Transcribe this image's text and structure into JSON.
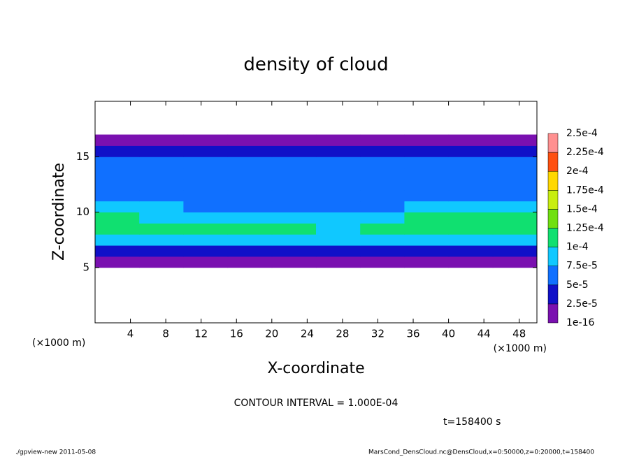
{
  "chart_data": {
    "type": "heatmap",
    "title": "density of cloud",
    "x_label": "X-coordinate",
    "y_label": "Z-coordinate",
    "x_unit": "(×1000 m)",
    "y_unit": "(×1000 m)",
    "contour_note": "CONTOUR INTERVAL = 1.000E-04",
    "time_note": "t=158400 s",
    "footer_left": "./gpview-new  2011-05-08",
    "footer_right": "MarsCond_DensCloud.nc@DensCloud,x=0:50000,z=0:20000,t=158400",
    "xlim": [
      0,
      50
    ],
    "ylim": [
      0,
      20
    ],
    "xticks": [
      4,
      8,
      12,
      16,
      20,
      24,
      28,
      32,
      36,
      40,
      44,
      48
    ],
    "yticks": [
      5,
      10,
      15
    ],
    "xbins": [
      0,
      5,
      10,
      15,
      20,
      25,
      30,
      35,
      40,
      45,
      50
    ],
    "zbins": [
      5,
      6,
      7,
      8,
      9,
      10,
      11,
      12,
      13,
      14,
      15,
      16,
      17
    ],
    "values": [
      [
        1e-05,
        1e-05,
        1e-05,
        1e-05,
        1e-05,
        1e-05,
        1e-05,
        1e-05,
        1e-05,
        1e-05
      ],
      [
        3e-05,
        3e-05,
        3e-05,
        3e-05,
        3e-05,
        3e-05,
        3e-05,
        3e-05,
        3e-05,
        3e-05
      ],
      [
        9.5e-05,
        9e-05,
        9e-05,
        8.5e-05,
        8.5e-05,
        8e-05,
        8e-05,
        8.5e-05,
        8.5e-05,
        9e-05
      ],
      [
        0.00011,
        0.000105,
        0.000105,
        0.0001,
        0.000105,
        9e-05,
        0.0001,
        0.000105,
        0.000105,
        0.00011
      ],
      [
        0.000105,
        9e-05,
        8.5e-05,
        8e-05,
        8e-05,
        8e-05,
        9e-05,
        0.0001,
        0.000105,
        0.000105
      ],
      [
        8e-05,
        7.5e-05,
        7e-05,
        6.5e-05,
        6e-05,
        6e-05,
        7e-05,
        8e-05,
        8e-05,
        8e-05
      ],
      [
        6.5e-05,
        6.5e-05,
        6e-05,
        6e-05,
        5.5e-05,
        6e-05,
        6e-05,
        6.5e-05,
        6.5e-05,
        6e-05
      ],
      [
        6e-05,
        6e-05,
        6e-05,
        6e-05,
        6e-05,
        6e-05,
        6e-05,
        6e-05,
        5.5e-05,
        5.5e-05
      ],
      [
        6e-05,
        6e-05,
        6e-05,
        6e-05,
        6e-05,
        6e-05,
        6e-05,
        6e-05,
        6e-05,
        6e-05
      ],
      [
        5.5e-05,
        5.5e-05,
        5.5e-05,
        5.5e-05,
        5.5e-05,
        5.5e-05,
        5.5e-05,
        5.5e-05,
        5.5e-05,
        5.5e-05
      ],
      [
        3e-05,
        3e-05,
        3e-05,
        3e-05,
        3e-05,
        3e-05,
        3e-05,
        3e-05,
        3e-05,
        3e-05
      ],
      [
        1e-05,
        1e-05,
        1e-05,
        1e-05,
        1e-05,
        1e-05,
        1e-05,
        1e-05,
        1e-05,
        1e-05
      ]
    ],
    "levels": [
      {
        "value": 1e-16,
        "label": "1e-16"
      },
      {
        "value": 2.5e-05,
        "label": "2.5e-5"
      },
      {
        "value": 5e-05,
        "label": "5e-5"
      },
      {
        "value": 7.5e-05,
        "label": "7.5e-5"
      },
      {
        "value": 0.0001,
        "label": "1e-4"
      },
      {
        "value": 0.000125,
        "label": "1.25e-4"
      },
      {
        "value": 0.00015,
        "label": "1.5e-4"
      },
      {
        "value": 0.000175,
        "label": "1.75e-4"
      },
      {
        "value": 0.0002,
        "label": "2e-4"
      },
      {
        "value": 0.000225,
        "label": "2.25e-4"
      },
      {
        "value": 0.00025,
        "label": "2.5e-4"
      }
    ],
    "colors": [
      "#7a10b0",
      "#1010c8",
      "#1070ff",
      "#10c8ff",
      "#10e070",
      "#70e010",
      "#c8ee10",
      "#ffd800",
      "#ff5010",
      "#ff9090"
    ]
  }
}
